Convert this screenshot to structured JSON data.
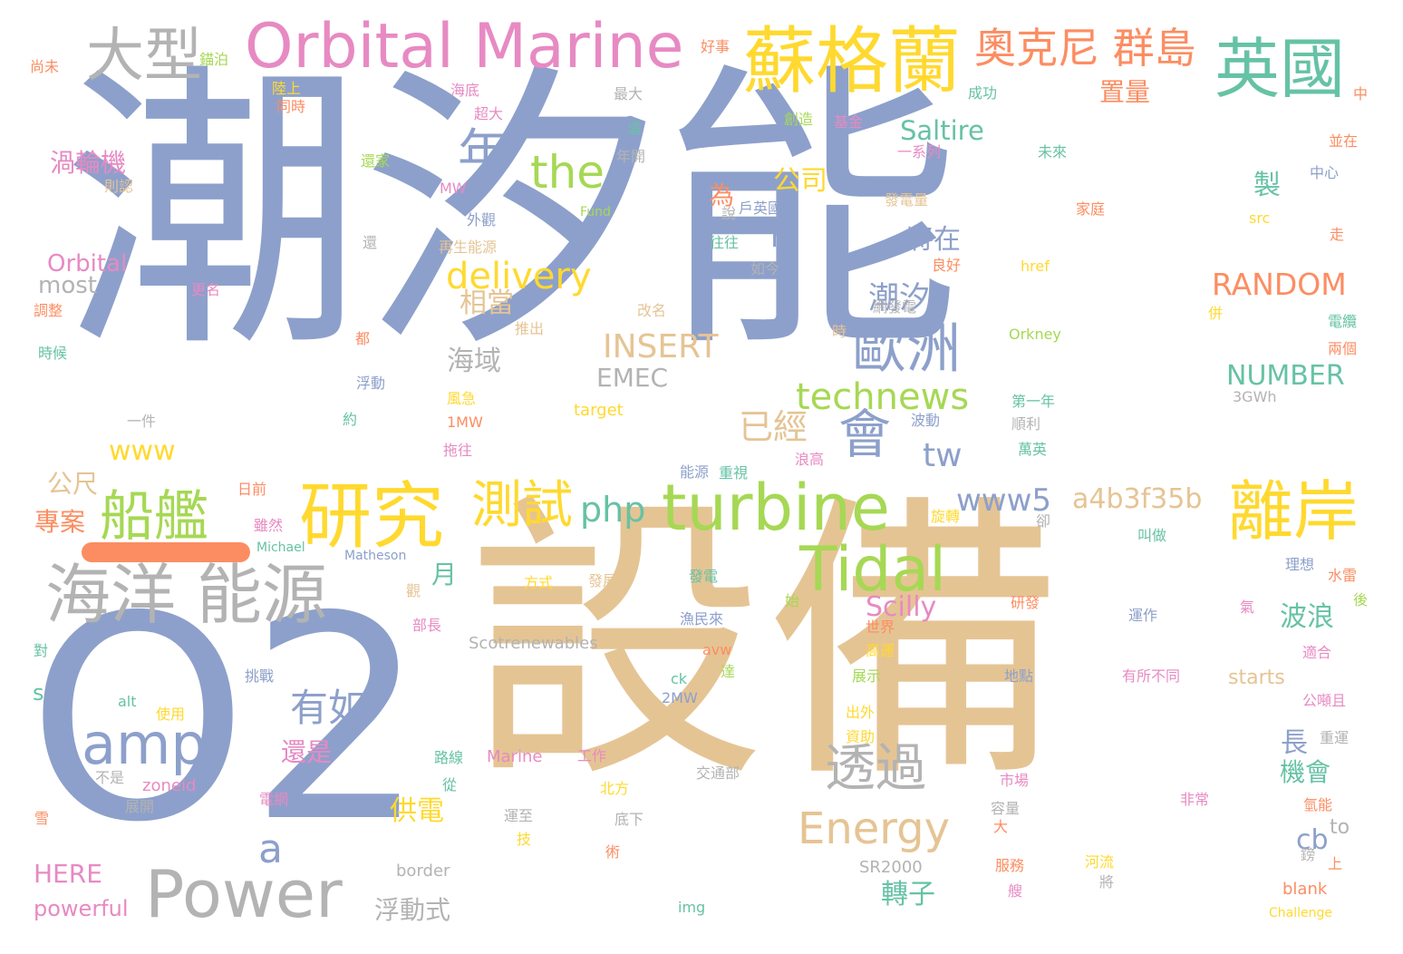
{
  "palette": {
    "blue": "#8da0cb",
    "tan": "#e5c494",
    "grey": "#b3b3b3",
    "pink": "#e78ac3",
    "yellow": "#ffd92f",
    "green": "#66c2a5",
    "lime": "#a6d854",
    "orange": "#fc8d62"
  },
  "words": [
    {
      "text": "潮汐能",
      "color": "blue"
    },
    {
      "text": "設備",
      "color": "tan"
    },
    {
      "text": "O2",
      "color": "blue"
    },
    {
      "text": "Orbital Marine",
      "color": "pink"
    },
    {
      "text": "蘇格蘭",
      "color": "yellow"
    },
    {
      "text": "英國",
      "color": "green"
    },
    {
      "text": "大型",
      "color": "grey"
    },
    {
      "text": "奧克尼 群島",
      "color": "orange"
    },
    {
      "text": "turbine",
      "color": "lime"
    },
    {
      "text": "研究",
      "color": "yellow"
    },
    {
      "text": "海洋 能源",
      "color": "grey"
    },
    {
      "text": "Power",
      "color": "grey"
    },
    {
      "text": "Tidal",
      "color": "lime"
    },
    {
      "text": "離岸",
      "color": "yellow"
    },
    {
      "text": "船艦",
      "color": "lime"
    },
    {
      "text": "測試",
      "color": "yellow"
    },
    {
      "text": "歐洲",
      "color": "blue"
    },
    {
      "text": "the",
      "color": "lime"
    },
    {
      "text": "年",
      "color": "blue"
    },
    {
      "text": "amp",
      "color": "blue"
    },
    {
      "text": "會",
      "color": "blue"
    },
    {
      "text": "Energy",
      "color": "tan"
    },
    {
      "text": "透過",
      "color": "grey"
    },
    {
      "text": "technews",
      "color": "lime"
    },
    {
      "text": "delivery",
      "color": "yellow"
    },
    {
      "text": "www5",
      "color": "blue"
    },
    {
      "text": "a4b3f35b",
      "color": "tan"
    },
    {
      "text": "RANDOM",
      "color": "orange"
    },
    {
      "text": "INSERT",
      "color": "tan"
    },
    {
      "text": "NUMBER",
      "color": "green"
    },
    {
      "text": "Saltire",
      "color": "green"
    },
    {
      "text": "有如",
      "color": "blue"
    },
    {
      "text": "a",
      "color": "blue"
    },
    {
      "text": "已經",
      "color": "tan"
    },
    {
      "text": "php",
      "color": "green"
    },
    {
      "text": "tw",
      "color": "blue"
    },
    {
      "text": "Scilly",
      "color": "pink"
    },
    {
      "text": "www",
      "color": "yellow"
    },
    {
      "text": "渦輪機",
      "color": "pink"
    },
    {
      "text": "Orbital",
      "color": "pink"
    },
    {
      "text": "most",
      "color": "grey"
    },
    {
      "text": "EMEC",
      "color": "grey"
    },
    {
      "text": "潮汐",
      "color": "blue"
    },
    {
      "text": "將在",
      "color": "blue"
    },
    {
      "text": "置量",
      "color": "orange"
    },
    {
      "text": "海域",
      "color": "grey"
    },
    {
      "text": "相當",
      "color": "tan"
    },
    {
      "text": "公司",
      "color": "yellow"
    },
    {
      "text": "為",
      "color": "orange"
    },
    {
      "text": "n",
      "color": "blue"
    },
    {
      "text": "製",
      "color": "green"
    },
    {
      "text": "波浪",
      "color": "green"
    },
    {
      "text": "機會",
      "color": "green"
    },
    {
      "text": "長",
      "color": "blue"
    },
    {
      "text": "cb",
      "color": "blue"
    },
    {
      "text": "轉子",
      "color": "green"
    },
    {
      "text": "供電",
      "color": "yellow"
    },
    {
      "text": "浮動式",
      "color": "grey"
    },
    {
      "text": "還是",
      "color": "pink"
    },
    {
      "text": "月",
      "color": "green"
    },
    {
      "text": "公尺",
      "color": "tan"
    },
    {
      "text": "專案",
      "color": "orange"
    },
    {
      "text": "HERE",
      "color": "pink"
    },
    {
      "text": "powerful",
      "color": "pink"
    },
    {
      "text": "starts",
      "color": "tan"
    },
    {
      "text": "to",
      "color": "grey"
    },
    {
      "text": "s",
      "color": "green"
    },
    {
      "text": "Scotrenewables",
      "color": "grey"
    },
    {
      "text": "尚未",
      "color": "orange"
    },
    {
      "text": "錨泊",
      "color": "lime"
    },
    {
      "text": "好事",
      "color": "orange"
    },
    {
      "text": "陸上",
      "color": "yellow"
    },
    {
      "text": "同時",
      "color": "orange"
    },
    {
      "text": "海底",
      "color": "pink"
    },
    {
      "text": "超大",
      "color": "pink"
    },
    {
      "text": "最大",
      "color": "grey"
    },
    {
      "text": "成功",
      "color": "green"
    },
    {
      "text": "創造",
      "color": "lime"
    },
    {
      "text": "基金",
      "color": "pink"
    },
    {
      "text": "中",
      "color": "orange"
    },
    {
      "text": "造",
      "color": "green"
    },
    {
      "text": "一系列",
      "color": "pink"
    },
    {
      "text": "並在",
      "color": "orange"
    },
    {
      "text": "年開",
      "color": "grey"
    },
    {
      "text": "還家",
      "color": "lime"
    },
    {
      "text": "未來",
      "color": "green"
    },
    {
      "text": "中心",
      "color": "blue"
    },
    {
      "text": "則認",
      "color": "tan"
    },
    {
      "text": "MW",
      "color": "pink"
    },
    {
      "text": "發電量",
      "color": "tan"
    },
    {
      "text": "戶英國",
      "color": "blue"
    },
    {
      "text": "Fund",
      "color": "lime"
    },
    {
      "text": "家庭",
      "color": "orange"
    },
    {
      "text": "外觀",
      "color": "blue"
    },
    {
      "text": "說",
      "color": "grey"
    },
    {
      "text": "還",
      "color": "grey"
    },
    {
      "text": "再生能源",
      "color": "tan"
    },
    {
      "text": "往往",
      "color": "green"
    },
    {
      "text": "走",
      "color": "orange"
    },
    {
      "text": "src",
      "color": "yellow"
    },
    {
      "text": "更名",
      "color": "pink"
    },
    {
      "text": "如今",
      "color": "grey"
    },
    {
      "text": "良好",
      "color": "orange"
    },
    {
      "text": "href",
      "color": "yellow"
    },
    {
      "text": "調整",
      "color": "orange"
    },
    {
      "text": "改名",
      "color": "tan"
    },
    {
      "text": "網發電",
      "color": "grey"
    },
    {
      "text": "併",
      "color": "yellow"
    },
    {
      "text": "時候",
      "color": "green"
    },
    {
      "text": "都",
      "color": "orange"
    },
    {
      "text": "推出",
      "color": "tan"
    },
    {
      "text": "時",
      "color": "tan"
    },
    {
      "text": "Orkney",
      "color": "lime"
    },
    {
      "text": "電纜",
      "color": "green"
    },
    {
      "text": "兩個",
      "color": "orange"
    },
    {
      "text": "浮動",
      "color": "blue"
    },
    {
      "text": "一件",
      "color": "grey"
    },
    {
      "text": "風急",
      "color": "yellow"
    },
    {
      "text": "target",
      "color": "yellow"
    },
    {
      "text": "第一年",
      "color": "green"
    },
    {
      "text": "3GWh",
      "color": "grey"
    },
    {
      "text": "約",
      "color": "green"
    },
    {
      "text": "1MW",
      "color": "orange"
    },
    {
      "text": "波動",
      "color": "blue"
    },
    {
      "text": "順利",
      "color": "grey"
    },
    {
      "text": "萬英",
      "color": "green"
    },
    {
      "text": "拖往",
      "color": "pink"
    },
    {
      "text": "能源",
      "color": "blue"
    },
    {
      "text": "重視",
      "color": "green"
    },
    {
      "text": "浪高",
      "color": "pink"
    },
    {
      "text": "日前",
      "color": "orange"
    },
    {
      "text": "旋轉",
      "color": "yellow"
    },
    {
      "text": "雖然",
      "color": "pink"
    },
    {
      "text": "卻",
      "color": "grey"
    },
    {
      "text": "叫做",
      "color": "green"
    },
    {
      "text": "Michael",
      "color": "green"
    },
    {
      "text": "Matheson",
      "color": "blue"
    },
    {
      "text": "方式",
      "color": "yellow"
    },
    {
      "text": "發展",
      "color": "tan"
    },
    {
      "text": "發電",
      "color": "green"
    },
    {
      "text": "理想",
      "color": "blue"
    },
    {
      "text": "水雷",
      "color": "orange"
    },
    {
      "text": "後",
      "color": "lime"
    },
    {
      "text": "觀",
      "color": "tan"
    },
    {
      "text": "始",
      "color": "lime"
    },
    {
      "text": "研發",
      "color": "orange"
    },
    {
      "text": "氣",
      "color": "pink"
    },
    {
      "text": "部長",
      "color": "pink"
    },
    {
      "text": "漁民來",
      "color": "blue"
    },
    {
      "text": "世界",
      "color": "orange"
    },
    {
      "text": "運作",
      "color": "blue"
    },
    {
      "text": "對",
      "color": "green"
    },
    {
      "text": "高運",
      "color": "yellow"
    },
    {
      "text": "avw",
      "color": "orange"
    },
    {
      "text": "挑戰",
      "color": "blue"
    },
    {
      "text": "達",
      "color": "lime"
    },
    {
      "text": "展示",
      "color": "lime"
    },
    {
      "text": "地點",
      "color": "blue"
    },
    {
      "text": "有所不同",
      "color": "pink"
    },
    {
      "text": "適合",
      "color": "pink"
    },
    {
      "text": "alt",
      "color": "green"
    },
    {
      "text": "ck",
      "color": "green"
    },
    {
      "text": "2MW",
      "color": "blue"
    },
    {
      "text": "出外",
      "color": "yellow"
    },
    {
      "text": "公噸且",
      "color": "pink"
    },
    {
      "text": "使用",
      "color": "yellow"
    },
    {
      "text": "資助",
      "color": "yellow"
    },
    {
      "text": "重運",
      "color": "grey"
    },
    {
      "text": "路線",
      "color": "green"
    },
    {
      "text": "Marine",
      "color": "pink"
    },
    {
      "text": "工作",
      "color": "pink"
    },
    {
      "text": "不是",
      "color": "grey"
    },
    {
      "text": "zoneid",
      "color": "pink"
    },
    {
      "text": "交通部",
      "color": "grey"
    },
    {
      "text": "從",
      "color": "green"
    },
    {
      "text": "北方",
      "color": "yellow"
    },
    {
      "text": "市場",
      "color": "pink"
    },
    {
      "text": "電網",
      "color": "pink"
    },
    {
      "text": "展開",
      "color": "grey"
    },
    {
      "text": "非常",
      "color": "pink"
    },
    {
      "text": "氫能",
      "color": "orange"
    },
    {
      "text": "容量",
      "color": "grey"
    },
    {
      "text": "雪",
      "color": "orange"
    },
    {
      "text": "運至",
      "color": "grey"
    },
    {
      "text": "底下",
      "color": "grey"
    },
    {
      "text": "大",
      "color": "orange"
    },
    {
      "text": "技",
      "color": "yellow"
    },
    {
      "text": "術",
      "color": "orange"
    },
    {
      "text": "border",
      "color": "grey"
    },
    {
      "text": "SR2000",
      "color": "grey"
    },
    {
      "text": "河流",
      "color": "yellow"
    },
    {
      "text": "上",
      "color": "orange"
    },
    {
      "text": "鎊",
      "color": "grey"
    },
    {
      "text": "服務",
      "color": "orange"
    },
    {
      "text": "將",
      "color": "grey"
    },
    {
      "text": "blank",
      "color": "orange"
    },
    {
      "text": "img",
      "color": "green"
    },
    {
      "text": "Challenge",
      "color": "yellow"
    },
    {
      "text": "艘",
      "color": "pink"
    }
  ]
}
